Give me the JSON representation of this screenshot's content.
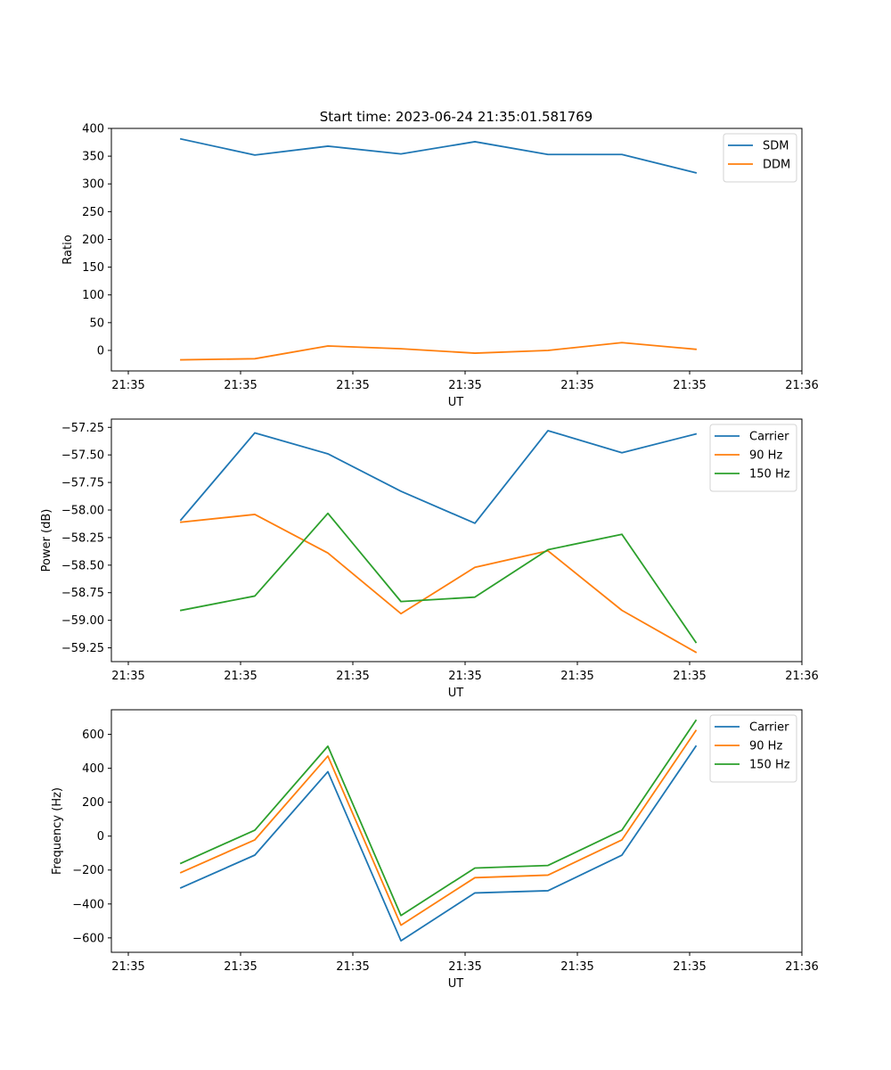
{
  "figure_title": "Start time: 2023-06-24 21:35:01.581769",
  "chart_data": [
    {
      "type": "line",
      "title": "Start time: 2023-06-24 21:35:01.581769",
      "xlabel": "UT",
      "ylabel": "Ratio",
      "x_tick_labels": [
        "21:35",
        "21:35",
        "21:35",
        "21:35",
        "21:35",
        "21:35",
        "21:36"
      ],
      "y_ticks": [
        0,
        50,
        100,
        150,
        200,
        250,
        300,
        350,
        400
      ],
      "y_tick_labels": [
        "0",
        "50",
        "100",
        "150",
        "200",
        "250",
        "300",
        "350",
        "400"
      ],
      "ylim": [
        -37,
        400
      ],
      "legend_position": "upper right",
      "x": [
        1,
        2,
        3,
        4,
        5,
        6,
        7,
        8
      ],
      "series": [
        {
          "name": "SDM",
          "color": "#1f77b4",
          "values": [
            381,
            352,
            368,
            354,
            376,
            353,
            353,
            320
          ]
        },
        {
          "name": "DDM",
          "color": "#ff7f0e",
          "values": [
            -17,
            -15,
            8,
            3,
            -5,
            0,
            14,
            2
          ]
        }
      ]
    },
    {
      "type": "line",
      "title": "",
      "xlabel": "UT",
      "ylabel": "Power (dB)",
      "x_tick_labels": [
        "21:35",
        "21:35",
        "21:35",
        "21:35",
        "21:35",
        "21:35",
        "21:36"
      ],
      "y_ticks": [
        -59.25,
        -59.0,
        -58.75,
        -58.5,
        -58.25,
        -58.0,
        -57.75,
        -57.5,
        -57.25
      ],
      "y_tick_labels": [
        "−59.25",
        "−59.00",
        "−58.75",
        "−58.50",
        "−58.25",
        "−58.00",
        "−57.75",
        "−57.50",
        "−57.25"
      ],
      "ylim": [
        -59.375,
        -57.175
      ],
      "legend_position": "upper right",
      "x": [
        1,
        2,
        3,
        4,
        5,
        6,
        7,
        8
      ],
      "series": [
        {
          "name": "Carrier",
          "color": "#1f77b4",
          "values": [
            -58.09,
            -57.3,
            -57.49,
            -57.83,
            -58.12,
            -57.28,
            -57.48,
            -57.31
          ]
        },
        {
          "name": "90 Hz",
          "color": "#ff7f0e",
          "values": [
            -58.11,
            -58.04,
            -58.39,
            -58.94,
            -58.52,
            -58.37,
            -58.91,
            -59.29
          ]
        },
        {
          "name": "150 Hz",
          "color": "#2ca02c",
          "values": [
            -58.91,
            -58.78,
            -58.03,
            -58.83,
            -58.79,
            -58.36,
            -58.22,
            -59.2
          ]
        }
      ]
    },
    {
      "type": "line",
      "title": "",
      "xlabel": "UT",
      "ylabel": "Frequency (Hz)",
      "x_tick_labels": [
        "21:35",
        "21:35",
        "21:35",
        "21:35",
        "21:35",
        "21:35",
        "21:36"
      ],
      "y_ticks": [
        -600,
        -400,
        -200,
        0,
        200,
        400,
        600
      ],
      "y_tick_labels": [
        "−600",
        "−400",
        "−200",
        "0",
        "200",
        "400",
        "600"
      ],
      "ylim": [
        -685,
        745
      ],
      "legend_position": "upper right",
      "x": [
        1,
        2,
        3,
        4,
        5,
        6,
        7,
        8
      ],
      "series": [
        {
          "name": "Carrier",
          "color": "#1f77b4",
          "values": [
            -305,
            -112,
            380,
            -617,
            -335,
            -322,
            -112,
            530
          ]
        },
        {
          "name": "90 Hz",
          "color": "#ff7f0e",
          "values": [
            -215,
            -22,
            472,
            -525,
            -245,
            -230,
            -22,
            622
          ]
        },
        {
          "name": "150 Hz",
          "color": "#2ca02c",
          "values": [
            -160,
            35,
            530,
            -468,
            -188,
            -173,
            35,
            682
          ]
        }
      ]
    }
  ]
}
